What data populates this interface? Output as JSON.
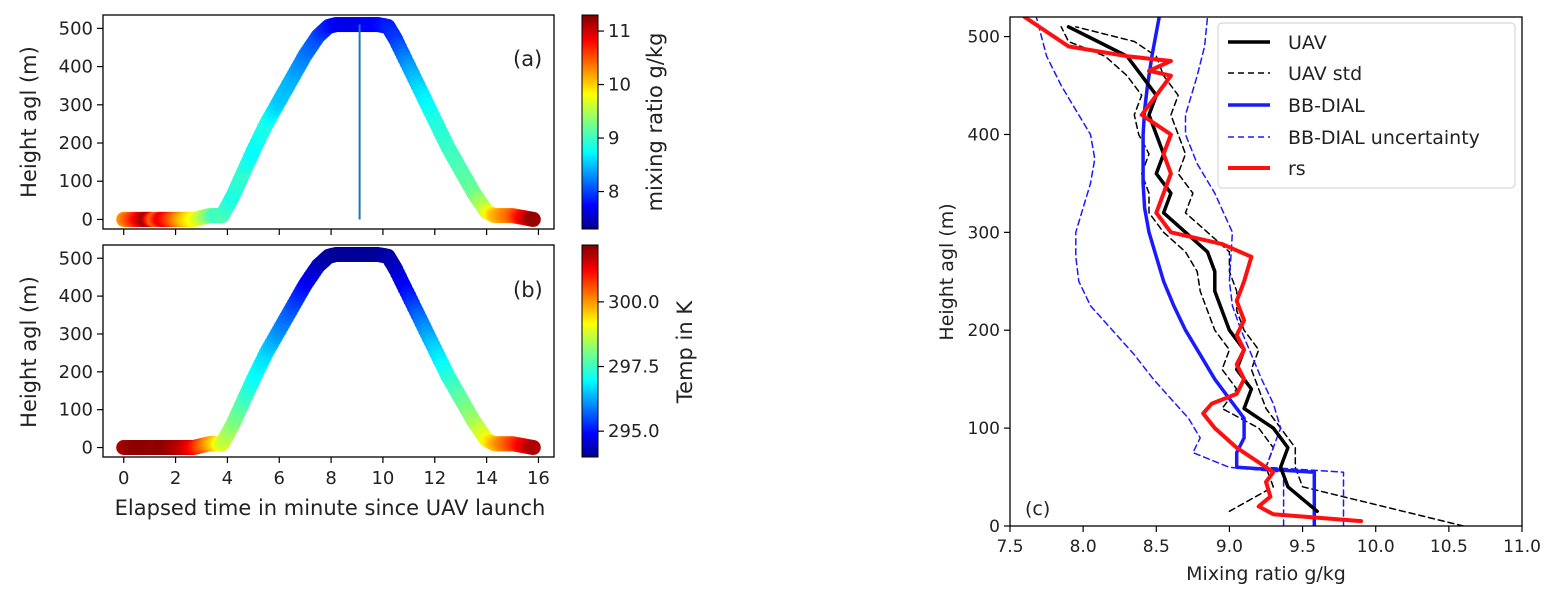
{
  "chart_data": [
    {
      "type": "scatter",
      "panel_label": "(a)",
      "x_data": [
        0.0,
        0.3,
        0.6,
        0.9,
        1.2,
        1.5,
        1.8,
        2.1,
        2.4,
        2.7,
        3.0,
        3.3,
        3.6,
        3.8,
        4.2,
        4.6,
        5.0,
        5.5,
        6.0,
        6.5,
        7.0,
        7.5,
        7.9,
        8.2,
        8.6,
        9.0,
        9.4,
        9.8,
        10.2,
        10.5,
        11.0,
        11.5,
        12.0,
        12.5,
        13.0,
        13.5,
        14.0,
        14.3,
        14.6,
        15.0,
        15.4,
        15.8
      ],
      "y_data": [
        0,
        0,
        0,
        0,
        0,
        0,
        0,
        0,
        0,
        0,
        5,
        10,
        10,
        10,
        60,
        120,
        180,
        250,
        310,
        370,
        430,
        480,
        505,
        510,
        510,
        510,
        510,
        510,
        505,
        470,
        400,
        330,
        260,
        190,
        130,
        70,
        20,
        10,
        10,
        10,
        5,
        0
      ],
      "c_data": [
        10.2,
        10.5,
        10.8,
        11.2,
        10.4,
        10.9,
        10.6,
        10.3,
        10.0,
        9.8,
        9.6,
        9.3,
        9.0,
        9.1,
        8.9,
        9.0,
        8.8,
        8.9,
        8.6,
        8.5,
        8.3,
        8.1,
        7.9,
        7.8,
        7.7,
        7.7,
        7.8,
        7.8,
        7.9,
        8.0,
        8.4,
        8.7,
        8.9,
        9.0,
        9.1,
        9.2,
        9.6,
        10.0,
        10.2,
        10.4,
        10.8,
        11.2
      ],
      "vertical_line_x": 9.1,
      "ylabel": "Height agl (m)",
      "xlim": [
        -0.8,
        16.6
      ],
      "ylim": [
        -25,
        535
      ],
      "y_ticks": [
        "0",
        "100",
        "200",
        "300",
        "400",
        "500"
      ],
      "x_ticks": [
        "0",
        "2",
        "4",
        "6",
        "8",
        "10",
        "12",
        "14",
        "16"
      ],
      "colorbar": {
        "label": "mixing ratio g/kg",
        "min": 7.3,
        "max": 11.3,
        "ticks": [
          "8",
          "9",
          "10",
          "11"
        ]
      }
    },
    {
      "type": "scatter",
      "panel_label": "(b)",
      "x_data": [
        0.0,
        0.3,
        0.6,
        0.9,
        1.2,
        1.5,
        1.8,
        2.1,
        2.4,
        2.7,
        3.0,
        3.3,
        3.6,
        3.8,
        4.2,
        4.6,
        5.0,
        5.5,
        6.0,
        6.5,
        7.0,
        7.5,
        7.9,
        8.2,
        8.6,
        9.0,
        9.4,
        9.8,
        10.2,
        10.5,
        11.0,
        11.5,
        12.0,
        12.5,
        13.0,
        13.5,
        14.0,
        14.3,
        14.6,
        15.0,
        15.4,
        15.8
      ],
      "y_data": [
        0,
        0,
        0,
        0,
        0,
        0,
        0,
        0,
        0,
        0,
        5,
        10,
        10,
        10,
        60,
        120,
        180,
        250,
        310,
        370,
        430,
        480,
        505,
        510,
        510,
        510,
        510,
        510,
        505,
        470,
        400,
        330,
        260,
        190,
        130,
        70,
        20,
        10,
        10,
        10,
        5,
        0
      ],
      "c_data": [
        301.8,
        302.0,
        302.1,
        302.1,
        302.0,
        302.1,
        302.0,
        301.8,
        301.6,
        301.2,
        300.6,
        300.0,
        299.4,
        298.8,
        298.2,
        297.7,
        297.2,
        296.8,
        296.2,
        295.7,
        295.1,
        294.6,
        294.3,
        294.2,
        294.2,
        294.2,
        294.2,
        294.2,
        294.3,
        294.5,
        295.2,
        296.0,
        296.7,
        297.3,
        297.8,
        298.3,
        299.0,
        299.6,
        300.1,
        300.6,
        301.2,
        301.8
      ],
      "ylabel": "Height agl (m)",
      "xlabel": "Elapsed time in minute since UAV launch",
      "xlim": [
        -0.8,
        16.6
      ],
      "ylim": [
        -25,
        535
      ],
      "y_ticks": [
        "0",
        "100",
        "200",
        "300",
        "400",
        "500"
      ],
      "x_ticks": [
        "0",
        "2",
        "4",
        "6",
        "8",
        "10",
        "12",
        "14",
        "16"
      ],
      "colorbar": {
        "label": "Temp in K",
        "min": 294.0,
        "max": 302.2,
        "ticks": [
          "295.0",
          "297.5",
          "300.0"
        ]
      }
    },
    {
      "type": "line",
      "panel_label": "(c)",
      "xlabel": "Mixing ratio g/kg",
      "ylabel": "Height agl (m)",
      "xlim": [
        7.5,
        11.0
      ],
      "ylim": [
        0,
        520
      ],
      "x_ticks": [
        "7.5",
        "8.0",
        "8.5",
        "9.0",
        "9.5",
        "10.0",
        "10.5",
        "11.0"
      ],
      "y_ticks": [
        "0",
        "100",
        "200",
        "300",
        "400",
        "500"
      ],
      "series": [
        {
          "name": "UAV",
          "color": "#000000",
          "style": "solid",
          "x": [
            9.6,
            9.4,
            9.35,
            9.4,
            9.3,
            9.1,
            9.15,
            9.05,
            9.1,
            9.0,
            8.95,
            8.9,
            8.9,
            8.85,
            8.7,
            8.55,
            8.6,
            8.5,
            8.55,
            8.5,
            8.45,
            8.5,
            8.4,
            8.3,
            8.1,
            7.9
          ],
          "y": [
            15,
            40,
            60,
            80,
            100,
            120,
            140,
            160,
            180,
            200,
            220,
            240,
            260,
            280,
            300,
            320,
            340,
            360,
            380,
            400,
            420,
            440,
            460,
            480,
            495,
            510
          ]
        },
        {
          "name": "UAV std",
          "color": "#000000",
          "style": "dashed",
          "x": [
            10.6,
            9.5,
            9.45,
            9.45,
            9.35,
            9.25,
            9.2,
            9.15,
            9.2,
            9.1,
            9.05,
            9.05,
            9.0,
            9.0,
            8.85,
            8.7,
            8.75,
            8.65,
            8.7,
            8.65,
            8.6,
            8.65,
            8.55,
            8.5,
            8.35,
            7.95
          ],
          "y": [
            0,
            40,
            60,
            80,
            100,
            120,
            140,
            160,
            180,
            200,
            220,
            240,
            260,
            280,
            300,
            320,
            340,
            360,
            380,
            400,
            420,
            440,
            460,
            480,
            495,
            510
          ]
        },
        {
          "name": "",
          "color": "#000000",
          "style": "dashed",
          "x": [
            9.0,
            9.3,
            9.25,
            9.3,
            9.2,
            8.95,
            9.05,
            8.95,
            9.0,
            8.9,
            8.85,
            8.8,
            8.78,
            8.7,
            8.55,
            8.45,
            8.45,
            8.4,
            8.45,
            8.38,
            8.35,
            8.4,
            8.3,
            8.15,
            7.9,
            7.85
          ],
          "y": [
            15,
            40,
            60,
            80,
            100,
            120,
            140,
            160,
            180,
            200,
            220,
            240,
            260,
            280,
            300,
            320,
            340,
            360,
            380,
            400,
            420,
            440,
            460,
            480,
            495,
            510
          ]
        },
        {
          "name": "BB-DIAL",
          "color": "#1a1aff",
          "style": "solid",
          "x": [
            9.58,
            9.58,
            9.05,
            9.05,
            9.1,
            9.1,
            9.0,
            8.9,
            8.8,
            8.7,
            8.62,
            8.55,
            8.5,
            8.45,
            8.42,
            8.41,
            8.41,
            8.41,
            8.42,
            8.44,
            8.47,
            8.52
          ],
          "y": [
            0,
            55,
            60,
            75,
            90,
            110,
            130,
            150,
            175,
            200,
            225,
            250,
            275,
            300,
            325,
            350,
            375,
            400,
            425,
            450,
            480,
            520
          ]
        },
        {
          "name": "BB-DIAL uncertainty",
          "color": "#1a1aff",
          "style": "dashed",
          "x": [
            9.78,
            9.78,
            9.25,
            9.3,
            9.35,
            9.3,
            9.22,
            9.15,
            9.08,
            9.02,
            9.0,
            9.02,
            8.9,
            8.78,
            8.7,
            8.7,
            8.74,
            8.78,
            8.83,
            8.85
          ],
          "y": [
            0,
            55,
            60,
            80,
            100,
            125,
            150,
            175,
            200,
            225,
            250,
            300,
            340,
            370,
            400,
            420,
            440,
            460,
            490,
            520
          ]
        },
        {
          "name": "",
          "color": "#1a1aff",
          "style": "dashed",
          "x": [
            9.37,
            9.37,
            9.0,
            8.75,
            8.8,
            8.72,
            8.6,
            8.48,
            8.35,
            8.2,
            8.05,
            7.97,
            7.95,
            7.95,
            8.0,
            8.05,
            8.08,
            8.05,
            7.95,
            7.85,
            7.75,
            7.68
          ],
          "y": [
            0,
            55,
            60,
            75,
            90,
            110,
            130,
            150,
            175,
            200,
            225,
            250,
            275,
            300,
            325,
            350,
            375,
            400,
            425,
            450,
            480,
            520
          ]
        },
        {
          "name": "rs",
          "color": "#ff1010",
          "style": "solid",
          "x": [
            9.9,
            9.3,
            9.2,
            9.28,
            9.25,
            9.3,
            9.2,
            9.05,
            8.9,
            8.82,
            8.88,
            9.05,
            9.1,
            9.05,
            9.1,
            9.05,
            9.1,
            9.05,
            9.1,
            9.15,
            8.95,
            8.6,
            8.5,
            8.55,
            8.6,
            8.55,
            8.6,
            8.5,
            8.4,
            8.5,
            8.6,
            8.45,
            8.6,
            8.3,
            7.9,
            7.8,
            7.6
          ],
          "y": [
            5,
            12,
            20,
            30,
            45,
            55,
            65,
            80,
            100,
            115,
            125,
            135,
            150,
            165,
            180,
            195,
            210,
            230,
            250,
            275,
            288,
            300,
            320,
            340,
            360,
            380,
            400,
            410,
            420,
            440,
            460,
            465,
            475,
            480,
            490,
            500,
            520
          ]
        }
      ],
      "legend": [
        "UAV",
        "UAV std",
        "BB-DIAL",
        "BB-DIAL uncertainty",
        "rs"
      ],
      "legend_position": "top-right"
    }
  ]
}
